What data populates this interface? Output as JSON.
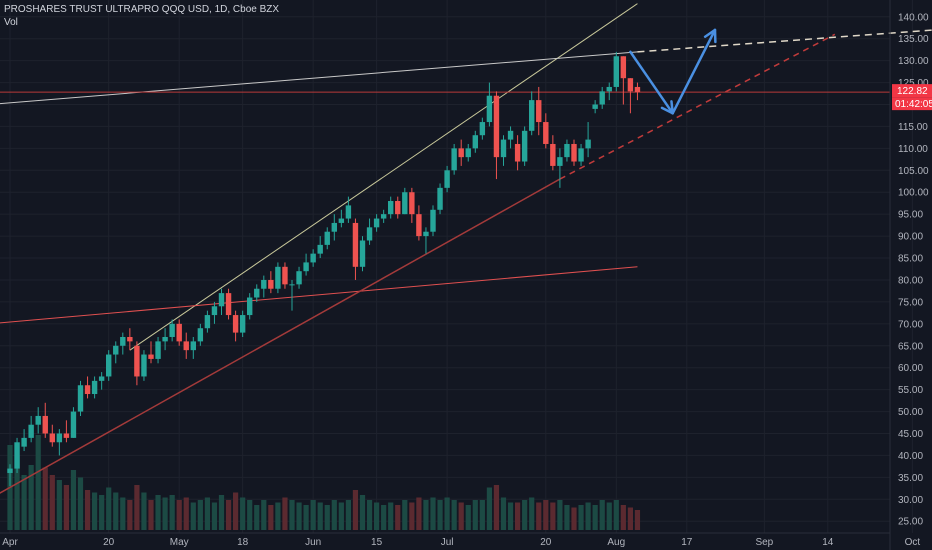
{
  "header": {
    "symbol_line": "PROSHARES TRUST ULTRAPRO QQQ USD, 1D, Cboe BZX",
    "volume_label": "Vol"
  },
  "price_tags": {
    "last_price": "122.82",
    "countdown": "01:42:05",
    "tag_color": "#f23645"
  },
  "colors": {
    "background": "#131722",
    "up": "#26a69a",
    "down": "#ef5350",
    "vol_up": "#1c4a44",
    "vol_down": "#5b2a30",
    "arrow": "#4a90e2",
    "channel_upper": "#c8c89a",
    "resistance": "#c9c9c9",
    "support_red": "#e05050"
  },
  "chart_data": {
    "type": "candlestick",
    "title": "PROSHARES TRUST ULTRAPRO QQQ USD, 1D, Cboe BZX",
    "yaxis_ticks": [
      25,
      30,
      35,
      40,
      45,
      50,
      55,
      60,
      65,
      70,
      75,
      80,
      85,
      90,
      95,
      100,
      105,
      110,
      115,
      120,
      125,
      130,
      135,
      140
    ],
    "ylim": [
      23,
      142
    ],
    "xaxis_ticks": [
      {
        "label": "Apr",
        "x": 0
      },
      {
        "label": "20",
        "x": 14
      },
      {
        "label": "May",
        "x": 24
      },
      {
        "label": "18",
        "x": 33
      },
      {
        "label": "Jun",
        "x": 43
      },
      {
        "label": "15",
        "x": 52
      },
      {
        "label": "Jul",
        "x": 62
      },
      {
        "label": "20",
        "x": 76
      },
      {
        "label": "Aug",
        "x": 86
      },
      {
        "label": "17",
        "x": 96
      },
      {
        "label": "Sep",
        "x": 107
      },
      {
        "label": "14",
        "x": 116
      },
      {
        "label": "Oct",
        "x": 128
      }
    ],
    "grid": true,
    "candles": [
      {
        "o": 36,
        "h": 38,
        "l": 33,
        "c": 37
      },
      {
        "o": 37,
        "h": 44,
        "l": 36,
        "c": 43
      },
      {
        "o": 42,
        "h": 46,
        "l": 41,
        "c": 44
      },
      {
        "o": 44,
        "h": 49,
        "l": 43,
        "c": 47
      },
      {
        "o": 47,
        "h": 51,
        "l": 45,
        "c": 49
      },
      {
        "o": 49,
        "h": 52,
        "l": 44,
        "c": 45
      },
      {
        "o": 45,
        "h": 47,
        "l": 42,
        "c": 43
      },
      {
        "o": 43,
        "h": 46,
        "l": 40,
        "c": 45
      },
      {
        "o": 45,
        "h": 48,
        "l": 43,
        "c": 44
      },
      {
        "o": 44,
        "h": 51,
        "l": 44,
        "c": 50
      },
      {
        "o": 50,
        "h": 57,
        "l": 49,
        "c": 56
      },
      {
        "o": 56,
        "h": 58,
        "l": 53,
        "c": 54
      },
      {
        "o": 54,
        "h": 58,
        "l": 53,
        "c": 57
      },
      {
        "o": 57,
        "h": 59,
        "l": 55,
        "c": 58
      },
      {
        "o": 58,
        "h": 64,
        "l": 57,
        "c": 63
      },
      {
        "o": 63,
        "h": 66,
        "l": 61,
        "c": 65
      },
      {
        "o": 65,
        "h": 68,
        "l": 63,
        "c": 67
      },
      {
        "o": 67,
        "h": 69,
        "l": 64,
        "c": 66
      },
      {
        "o": 65,
        "h": 66,
        "l": 56,
        "c": 58
      },
      {
        "o": 58,
        "h": 64,
        "l": 57,
        "c": 63
      },
      {
        "o": 63,
        "h": 66,
        "l": 61,
        "c": 62
      },
      {
        "o": 62,
        "h": 67,
        "l": 61,
        "c": 66
      },
      {
        "o": 66,
        "h": 69,
        "l": 64,
        "c": 67
      },
      {
        "o": 67,
        "h": 71,
        "l": 66,
        "c": 70
      },
      {
        "o": 70,
        "h": 71,
        "l": 65,
        "c": 66
      },
      {
        "o": 66,
        "h": 68,
        "l": 62,
        "c": 64
      },
      {
        "o": 64,
        "h": 67,
        "l": 62,
        "c": 66
      },
      {
        "o": 66,
        "h": 70,
        "l": 65,
        "c": 69
      },
      {
        "o": 69,
        "h": 73,
        "l": 68,
        "c": 72
      },
      {
        "o": 72,
        "h": 75,
        "l": 70,
        "c": 74
      },
      {
        "o": 74,
        "h": 78,
        "l": 72,
        "c": 77
      },
      {
        "o": 77,
        "h": 78,
        "l": 71,
        "c": 72
      },
      {
        "o": 72,
        "h": 73,
        "l": 66,
        "c": 68
      },
      {
        "o": 68,
        "h": 73,
        "l": 67,
        "c": 72
      },
      {
        "o": 72,
        "h": 77,
        "l": 71,
        "c": 76
      },
      {
        "o": 76,
        "h": 79,
        "l": 75,
        "c": 78
      },
      {
        "o": 78,
        "h": 81,
        "l": 76,
        "c": 80
      },
      {
        "o": 80,
        "h": 82,
        "l": 77,
        "c": 78
      },
      {
        "o": 78,
        "h": 84,
        "l": 77,
        "c": 83
      },
      {
        "o": 83,
        "h": 84,
        "l": 78,
        "c": 79
      },
      {
        "o": 79,
        "h": 80,
        "l": 73,
        "c": 79
      },
      {
        "o": 79,
        "h": 83,
        "l": 78,
        "c": 82
      },
      {
        "o": 82,
        "h": 86,
        "l": 81,
        "c": 84
      },
      {
        "o": 84,
        "h": 87,
        "l": 83,
        "c": 86
      },
      {
        "o": 86,
        "h": 90,
        "l": 85,
        "c": 88
      },
      {
        "o": 88,
        "h": 92,
        "l": 87,
        "c": 91
      },
      {
        "o": 91,
        "h": 95,
        "l": 89,
        "c": 93
      },
      {
        "o": 93,
        "h": 96,
        "l": 92,
        "c": 94
      },
      {
        "o": 94,
        "h": 99,
        "l": 93,
        "c": 97
      },
      {
        "o": 93,
        "h": 94,
        "l": 80,
        "c": 83
      },
      {
        "o": 83,
        "h": 90,
        "l": 82,
        "c": 89
      },
      {
        "o": 89,
        "h": 94,
        "l": 88,
        "c": 92
      },
      {
        "o": 92,
        "h": 95,
        "l": 91,
        "c": 94
      },
      {
        "o": 94,
        "h": 96,
        "l": 93,
        "c": 95
      },
      {
        "o": 95,
        "h": 99,
        "l": 94,
        "c": 98
      },
      {
        "o": 98,
        "h": 99,
        "l": 94,
        "c": 95
      },
      {
        "o": 95,
        "h": 101,
        "l": 95,
        "c": 100
      },
      {
        "o": 100,
        "h": 101,
        "l": 93,
        "c": 95
      },
      {
        "o": 95,
        "h": 97,
        "l": 89,
        "c": 90
      },
      {
        "o": 90,
        "h": 92,
        "l": 86,
        "c": 91
      },
      {
        "o": 91,
        "h": 97,
        "l": 90,
        "c": 96
      },
      {
        "o": 96,
        "h": 102,
        "l": 95,
        "c": 101
      },
      {
        "o": 101,
        "h": 106,
        "l": 100,
        "c": 105
      },
      {
        "o": 105,
        "h": 111,
        "l": 104,
        "c": 110
      },
      {
        "o": 110,
        "h": 112,
        "l": 106,
        "c": 108
      },
      {
        "o": 108,
        "h": 111,
        "l": 107,
        "c": 110
      },
      {
        "o": 110,
        "h": 114,
        "l": 109,
        "c": 113
      },
      {
        "o": 113,
        "h": 117,
        "l": 112,
        "c": 116
      },
      {
        "o": 116,
        "h": 125,
        "l": 115,
        "c": 122
      },
      {
        "o": 122,
        "h": 123,
        "l": 103,
        "c": 108
      },
      {
        "o": 108,
        "h": 113,
        "l": 106,
        "c": 112
      },
      {
        "o": 112,
        "h": 115,
        "l": 110,
        "c": 114
      },
      {
        "o": 111,
        "h": 113,
        "l": 105,
        "c": 107
      },
      {
        "o": 107,
        "h": 115,
        "l": 106,
        "c": 114
      },
      {
        "o": 114,
        "h": 123,
        "l": 113,
        "c": 121
      },
      {
        "o": 121,
        "h": 124,
        "l": 113,
        "c": 116
      },
      {
        "o": 116,
        "h": 118,
        "l": 110,
        "c": 111
      },
      {
        "o": 111,
        "h": 113,
        "l": 105,
        "c": 106
      },
      {
        "o": 106,
        "h": 110,
        "l": 101,
        "c": 108
      },
      {
        "o": 108,
        "h": 112,
        "l": 107,
        "c": 111
      },
      {
        "o": 111,
        "h": 112,
        "l": 106,
        "c": 107
      },
      {
        "o": 107,
        "h": 111,
        "l": 106,
        "c": 110
      },
      {
        "o": 110,
        "h": 116,
        "l": 108,
        "c": 112
      },
      {
        "o": 119,
        "h": 121,
        "l": 118,
        "c": 120
      },
      {
        "o": 120,
        "h": 124,
        "l": 119,
        "c": 123
      },
      {
        "o": 123,
        "h": 125,
        "l": 121,
        "c": 124
      },
      {
        "o": 124,
        "h": 132,
        "l": 123,
        "c": 131
      },
      {
        "o": 131,
        "h": 131,
        "l": 120,
        "c": 126
      },
      {
        "o": 126,
        "h": 126,
        "l": 118,
        "c": 123
      },
      {
        "o": 124,
        "h": 125,
        "l": 121,
        "c": 122.82
      }
    ],
    "volume": [
      {
        "v": 34,
        "up": true
      },
      {
        "v": 30,
        "up": true
      },
      {
        "v": 22,
        "up": true
      },
      {
        "v": 26,
        "up": true
      },
      {
        "v": 38,
        "up": true
      },
      {
        "v": 25,
        "up": false
      },
      {
        "v": 22,
        "up": false
      },
      {
        "v": 20,
        "up": true
      },
      {
        "v": 18,
        "up": false
      },
      {
        "v": 24,
        "up": true
      },
      {
        "v": 21,
        "up": true
      },
      {
        "v": 16,
        "up": false
      },
      {
        "v": 15,
        "up": true
      },
      {
        "v": 14,
        "up": true
      },
      {
        "v": 17,
        "up": true
      },
      {
        "v": 15,
        "up": true
      },
      {
        "v": 13,
        "up": true
      },
      {
        "v": 12,
        "up": false
      },
      {
        "v": 18,
        "up": false
      },
      {
        "v": 15,
        "up": true
      },
      {
        "v": 12,
        "up": false
      },
      {
        "v": 14,
        "up": true
      },
      {
        "v": 13,
        "up": true
      },
      {
        "v": 14,
        "up": true
      },
      {
        "v": 12,
        "up": false
      },
      {
        "v": 13,
        "up": false
      },
      {
        "v": 11,
        "up": true
      },
      {
        "v": 12,
        "up": true
      },
      {
        "v": 13,
        "up": true
      },
      {
        "v": 11,
        "up": true
      },
      {
        "v": 14,
        "up": true
      },
      {
        "v": 12,
        "up": false
      },
      {
        "v": 15,
        "up": false
      },
      {
        "v": 13,
        "up": true
      },
      {
        "v": 12,
        "up": true
      },
      {
        "v": 10,
        "up": true
      },
      {
        "v": 12,
        "up": true
      },
      {
        "v": 10,
        "up": false
      },
      {
        "v": 11,
        "up": true
      },
      {
        "v": 13,
        "up": false
      },
      {
        "v": 12,
        "up": true
      },
      {
        "v": 11,
        "up": true
      },
      {
        "v": 10,
        "up": true
      },
      {
        "v": 12,
        "up": true
      },
      {
        "v": 11,
        "up": true
      },
      {
        "v": 10,
        "up": true
      },
      {
        "v": 12,
        "up": true
      },
      {
        "v": 11,
        "up": true
      },
      {
        "v": 12,
        "up": true
      },
      {
        "v": 16,
        "up": false
      },
      {
        "v": 14,
        "up": true
      },
      {
        "v": 12,
        "up": true
      },
      {
        "v": 11,
        "up": true
      },
      {
        "v": 10,
        "up": true
      },
      {
        "v": 11,
        "up": true
      },
      {
        "v": 10,
        "up": false
      },
      {
        "v": 12,
        "up": true
      },
      {
        "v": 11,
        "up": false
      },
      {
        "v": 13,
        "up": false
      },
      {
        "v": 12,
        "up": true
      },
      {
        "v": 13,
        "up": true
      },
      {
        "v": 12,
        "up": true
      },
      {
        "v": 13,
        "up": true
      },
      {
        "v": 12,
        "up": true
      },
      {
        "v": 11,
        "up": false
      },
      {
        "v": 10,
        "up": true
      },
      {
        "v": 12,
        "up": true
      },
      {
        "v": 12,
        "up": true
      },
      {
        "v": 17,
        "up": true
      },
      {
        "v": 18,
        "up": false
      },
      {
        "v": 13,
        "up": true
      },
      {
        "v": 11,
        "up": true
      },
      {
        "v": 11,
        "up": false
      },
      {
        "v": 12,
        "up": true
      },
      {
        "v": 13,
        "up": true
      },
      {
        "v": 11,
        "up": false
      },
      {
        "v": 12,
        "up": false
      },
      {
        "v": 11,
        "up": false
      },
      {
        "v": 12,
        "up": true
      },
      {
        "v": 10,
        "up": true
      },
      {
        "v": 9,
        "up": false
      },
      {
        "v": 10,
        "up": true
      },
      {
        "v": 11,
        "up": true
      },
      {
        "v": 10,
        "up": true
      },
      {
        "v": 12,
        "up": true
      },
      {
        "v": 11,
        "up": true
      },
      {
        "v": 12,
        "up": true
      },
      {
        "v": 10,
        "up": false
      },
      {
        "v": 9,
        "up": false
      },
      {
        "v": 8,
        "up": false
      }
    ],
    "volume_max": 60,
    "drawings": {
      "upper_channel": {
        "from": [
          17,
          64
        ],
        "to": [
          89,
          143
        ]
      },
      "resistance_line": {
        "from": [
          -3,
          120
        ],
        "to": [
          89,
          132
        ]
      },
      "resistance_dashed": {
        "from": [
          89,
          132
        ],
        "to": [
          131,
          137
        ]
      },
      "support_line": {
        "from": [
          -3,
          30
        ],
        "to": [
          78,
          103
        ]
      },
      "support_dashed": {
        "from": [
          78,
          103
        ],
        "to": [
          117,
          136
        ]
      },
      "lower_line": {
        "from": [
          -3,
          70
        ],
        "to": [
          89,
          83
        ]
      },
      "price_hline": 122.82,
      "projection_arrows": [
        {
          "from": [
            88,
            132
          ],
          "to": [
            94,
            118
          ]
        },
        {
          "from": [
            94,
            118
          ],
          "to": [
            100,
            137
          ]
        }
      ]
    }
  }
}
